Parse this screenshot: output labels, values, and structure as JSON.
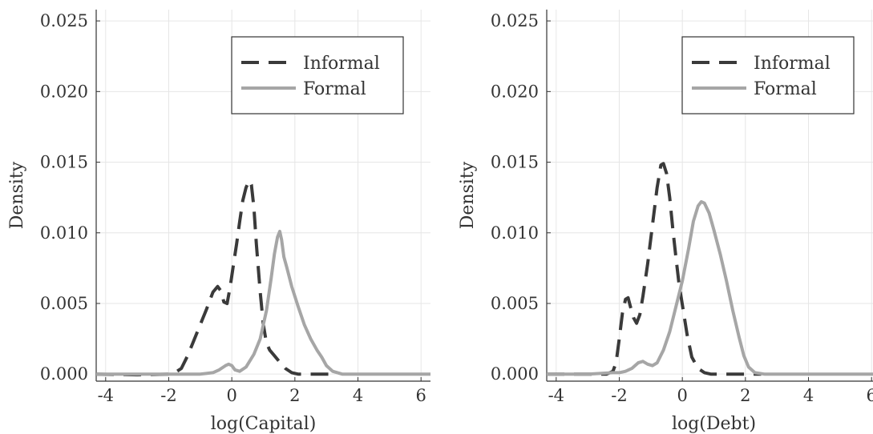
{
  "chart_data": [
    {
      "type": "line",
      "title": "",
      "xlabel": "log(Capital)",
      "ylabel": "Density",
      "xlim": [
        -4.3,
        6.3
      ],
      "ylim": [
        -0.0005,
        0.0258
      ],
      "xticks": [
        -4,
        -2,
        0,
        2,
        4,
        6
      ],
      "xtick_labels": [
        "-4",
        "-2",
        "0",
        "2",
        "4",
        "6"
      ],
      "yticks": [
        0.0,
        0.005,
        0.01,
        0.015,
        0.02,
        0.025
      ],
      "ytick_labels": [
        "0.000",
        "0.005",
        "0.010",
        "0.015",
        "0.020",
        "0.025"
      ],
      "grid": true,
      "legend_position": "top-right",
      "series": [
        {
          "name": "Informal",
          "style": "dashed",
          "color": "#3a3a3a",
          "x": [
            -4.3,
            -3.0,
            -2.0,
            -1.8,
            -1.6,
            -1.4,
            -1.2,
            -1.0,
            -0.8,
            -0.6,
            -0.45,
            -0.35,
            -0.25,
            -0.15,
            -0.05,
            0.05,
            0.15,
            0.25,
            0.35,
            0.45,
            0.55,
            0.62,
            0.7,
            0.78,
            0.9,
            1.0,
            1.1,
            1.2,
            1.35,
            1.5,
            1.7,
            1.9,
            2.1,
            2.5,
            2.9,
            3.2
          ],
          "y": [
            0.0,
            -5e-05,
            0.0,
            0.0001,
            0.0004,
            0.0013,
            0.0024,
            0.0035,
            0.0046,
            0.0058,
            0.0062,
            0.0059,
            0.0051,
            0.005,
            0.0062,
            0.0077,
            0.0092,
            0.0108,
            0.0123,
            0.0132,
            0.0137,
            0.0134,
            0.0118,
            0.0092,
            0.0058,
            0.0035,
            0.0022,
            0.0017,
            0.0013,
            0.0009,
            0.0004,
            0.0001,
            0.0,
            0.0,
            0.0,
            0.0
          ]
        },
        {
          "name": "Formal",
          "style": "solid",
          "color": "#a6a6a6",
          "x": [
            -4.3,
            -2.0,
            -1.0,
            -0.6,
            -0.4,
            -0.2,
            -0.1,
            0.0,
            0.1,
            0.25,
            0.45,
            0.7,
            0.9,
            1.1,
            1.25,
            1.35,
            1.45,
            1.52,
            1.58,
            1.65,
            1.75,
            1.9,
            2.1,
            2.3,
            2.5,
            2.7,
            2.85,
            3.0,
            3.2,
            3.5,
            4.5,
            6.3
          ],
          "y": [
            0.0,
            0.0,
            0.0,
            0.0001,
            0.0003,
            0.0006,
            0.0007,
            0.0006,
            0.0003,
            0.0002,
            0.0005,
            0.0014,
            0.0025,
            0.0045,
            0.0068,
            0.0085,
            0.0097,
            0.0101,
            0.0095,
            0.0083,
            0.0075,
            0.0062,
            0.0048,
            0.0035,
            0.0025,
            0.0017,
            0.0012,
            0.0006,
            0.0002,
            0.0,
            0.0,
            0.0
          ]
        }
      ]
    },
    {
      "type": "line",
      "title": "",
      "xlabel": "log(Debt)",
      "ylabel": "Density",
      "xlim": [
        -4.3,
        6.3
      ],
      "ylim": [
        -0.0005,
        0.0258
      ],
      "xticks": [
        -4,
        -2,
        0,
        2,
        4,
        6
      ],
      "xtick_labels": [
        "-4",
        "-2",
        "0",
        "2",
        "4",
        "6"
      ],
      "yticks": [
        0.0,
        0.005,
        0.01,
        0.015,
        0.02,
        0.025
      ],
      "ytick_labels": [
        "0.000",
        "0.005",
        "0.010",
        "0.015",
        "0.020",
        "0.025"
      ],
      "grid": true,
      "legend_position": "top-right",
      "series": [
        {
          "name": "Informal",
          "style": "dashed",
          "color": "#3a3a3a",
          "x": [
            -4.3,
            -3.0,
            -2.4,
            -2.2,
            -2.1,
            -2.0,
            -1.9,
            -1.8,
            -1.72,
            -1.65,
            -1.55,
            -1.45,
            -1.35,
            -1.25,
            -1.1,
            -0.95,
            -0.8,
            -0.68,
            -0.6,
            -0.5,
            -0.4,
            -0.3,
            -0.2,
            -0.1,
            0.0,
            0.15,
            0.3,
            0.5,
            0.7,
            0.9,
            1.2,
            1.6,
            2.0,
            2.5
          ],
          "y": [
            0.0,
            0.0,
            0.0,
            0.0002,
            0.0008,
            0.0025,
            0.0043,
            0.0053,
            0.0054,
            0.0048,
            0.004,
            0.0036,
            0.0042,
            0.0055,
            0.0078,
            0.0105,
            0.0132,
            0.0148,
            0.0149,
            0.0142,
            0.0125,
            0.0102,
            0.0082,
            0.0063,
            0.0049,
            0.0028,
            0.0012,
            0.0004,
            0.0001,
            0.0,
            0.0,
            0.0,
            0.0,
            0.0
          ]
        },
        {
          "name": "Formal",
          "style": "solid",
          "color": "#a6a6a6",
          "x": [
            -4.3,
            -3.0,
            -2.2,
            -2.0,
            -1.8,
            -1.6,
            -1.4,
            -1.25,
            -1.1,
            -0.95,
            -0.8,
            -0.6,
            -0.4,
            -0.2,
            0.0,
            0.2,
            0.35,
            0.5,
            0.6,
            0.7,
            0.85,
            1.0,
            1.2,
            1.4,
            1.6,
            1.8,
            1.95,
            2.1,
            2.3,
            2.6,
            4.0,
            6.3
          ],
          "y": [
            0.0,
            0.0,
            0.0001,
            0.0001,
            0.0002,
            0.0004,
            0.0008,
            0.0009,
            0.0007,
            0.0006,
            0.0008,
            0.0017,
            0.003,
            0.0048,
            0.0066,
            0.0089,
            0.0108,
            0.0119,
            0.0122,
            0.0121,
            0.0114,
            0.0102,
            0.0085,
            0.0066,
            0.0045,
            0.0026,
            0.0013,
            0.0005,
            0.0001,
            0.0,
            0.0,
            0.0
          ]
        }
      ]
    }
  ]
}
